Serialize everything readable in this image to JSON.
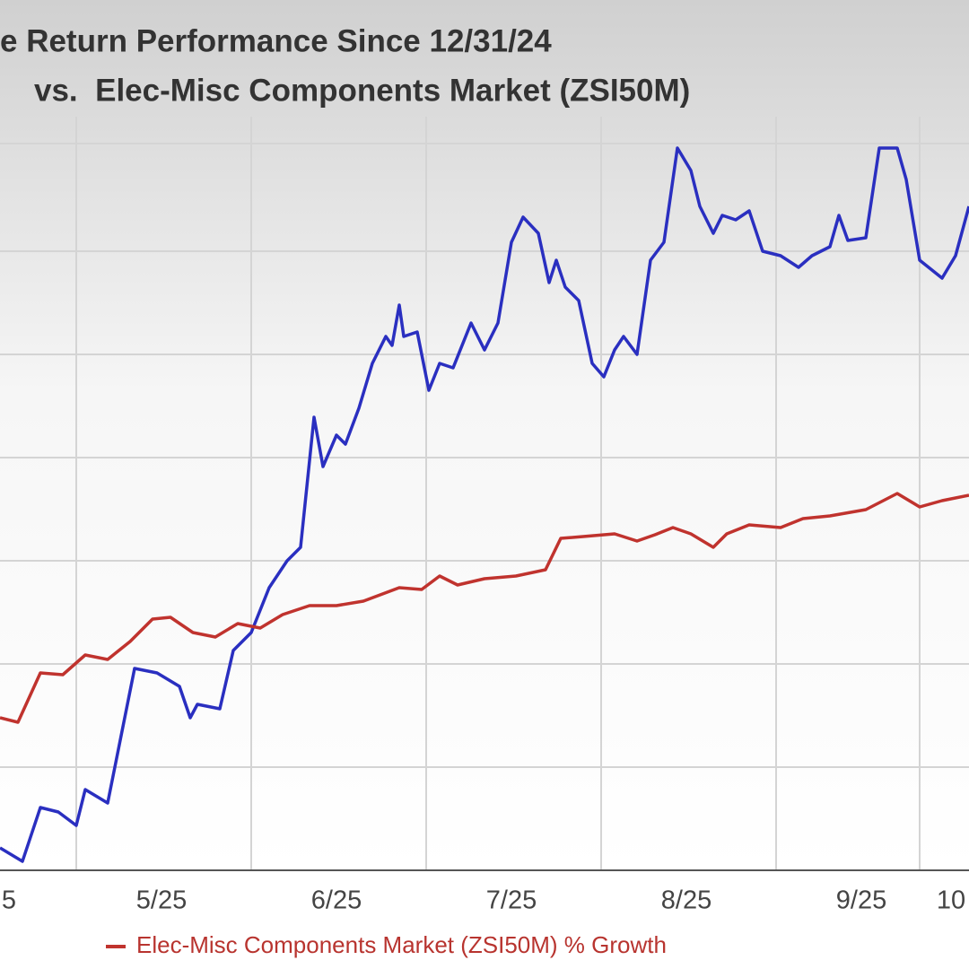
{
  "chart_data": {
    "type": "line",
    "title": [
      "e Return Performance Since 12/31/24",
      "vs.  Elec-Misc Components Market (ZSI50M)"
    ],
    "xlim": [
      0,
      108
    ],
    "ylim": [
      0,
      84
    ],
    "xticks": [
      {
        "value": 1.0,
        "label": "5"
      },
      {
        "value": 18.0,
        "label": "5/25"
      },
      {
        "value": 37.5,
        "label": "6/25"
      },
      {
        "value": 57.0,
        "label": "7/25"
      },
      {
        "value": 76.5,
        "label": "8/25"
      },
      {
        "value": 96.0,
        "label": "9/25"
      },
      {
        "value": 106.0,
        "label": "10"
      }
    ],
    "series": [
      {
        "color": "#2a2fc0",
        "x": [
          0,
          2.5,
          4.5,
          6.5,
          8.5,
          9.5,
          12,
          13.5,
          15,
          17.5,
          20,
          21.2,
          22,
          24.5,
          26,
          28,
          30,
          32,
          33.5,
          35,
          36,
          37.5,
          38.5,
          40,
          41.5,
          43,
          43.7,
          44.5,
          45,
          46.5,
          47.8,
          49,
          50.5,
          52.5,
          54,
          55.5,
          57,
          58.3,
          60,
          61.2,
          62,
          63,
          64.5,
          66,
          67.3,
          68.5,
          69.5,
          71,
          72.5,
          74,
          75.5,
          77,
          78,
          79.5,
          80.5,
          82,
          83.5,
          85,
          87,
          89,
          90.5,
          92.5,
          93.5,
          94.5,
          96.5,
          98,
          100,
          101,
          102.5,
          105,
          106.5,
          108
        ],
        "values": [
          2.5,
          1,
          7,
          6.5,
          5,
          9,
          7.5,
          15,
          22.5,
          22,
          20.5,
          17,
          18.5,
          18,
          24.5,
          26.5,
          31.5,
          34.5,
          36,
          50.5,
          45,
          48.5,
          47.5,
          51.5,
          56.5,
          59.5,
          58.5,
          63,
          59.5,
          60,
          53.5,
          56.5,
          56,
          61,
          58,
          61,
          70,
          72.8,
          71,
          65.5,
          68,
          65,
          63.5,
          56.5,
          55,
          58,
          59.5,
          57.5,
          68,
          70,
          80.5,
          78,
          74,
          71,
          73,
          72.5,
          73.5,
          69,
          68.5,
          67.2,
          68.5,
          69.5,
          73,
          70.2,
          70.5,
          80.5,
          80.5,
          77,
          68,
          66,
          68.5,
          74
        ]
      },
      {
        "name": "Elec-Misc Components Market (ZSI50M) % Growth",
        "color": "#c0332e",
        "x": [
          0,
          2,
          4.5,
          7,
          9.5,
          12,
          14.5,
          17,
          19,
          21.5,
          24,
          26.5,
          29,
          31.5,
          34.5,
          37.5,
          40.5,
          44.5,
          47,
          49,
          51,
          54,
          57.5,
          60.8,
          62.5,
          65,
          68.5,
          71,
          73,
          75,
          77,
          79.5,
          81,
          83.5,
          87,
          89.5,
          92.5,
          96.5,
          100,
          102.5,
          105,
          108
        ],
        "values": [
          17,
          16.5,
          22,
          21.8,
          24,
          23.5,
          25.5,
          28,
          28.2,
          26.5,
          26,
          27.5,
          27,
          28.5,
          29.5,
          29.5,
          30,
          31.5,
          31.3,
          32.8,
          31.8,
          32.5,
          32.8,
          33.5,
          37,
          37.2,
          37.5,
          36.7,
          37.4,
          38.2,
          37.5,
          36,
          37.5,
          38.5,
          38.2,
          39.2,
          39.5,
          40.2,
          42,
          40.5,
          41.2,
          41.8
        ]
      }
    ]
  }
}
